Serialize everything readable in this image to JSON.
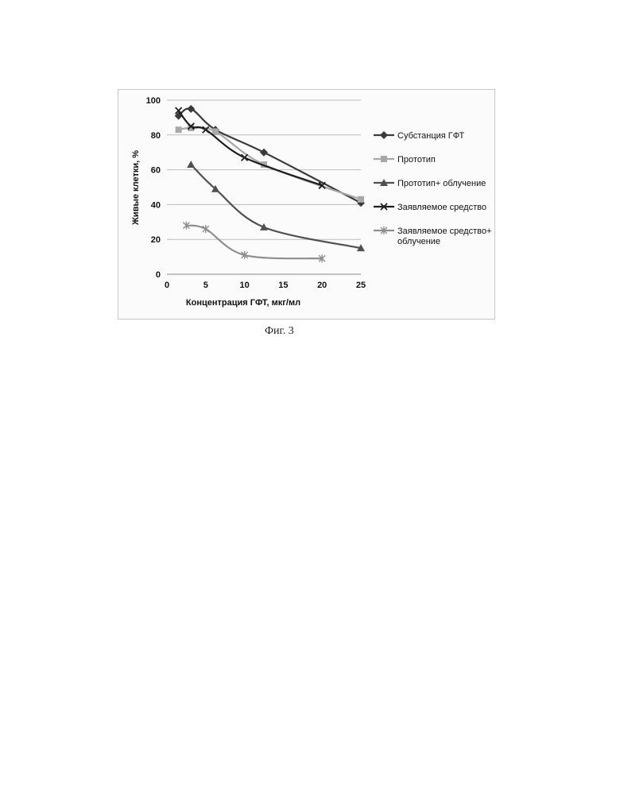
{
  "figure": {
    "caption": "Фиг. 3"
  },
  "chart_data": {
    "type": "line",
    "title": "",
    "xlabel": "Концентрация ГФТ, мкг/мл",
    "ylabel": "Живые клетки, %",
    "xlim": [
      0,
      25
    ],
    "ylim": [
      0,
      100
    ],
    "xticks": [
      0,
      5,
      10,
      15,
      20,
      25
    ],
    "yticks": [
      0,
      20,
      40,
      60,
      80,
      100
    ],
    "grid": "horizontal",
    "legend": "right",
    "series": [
      {
        "name": "Субстанция ГФТ",
        "marker": "diamond",
        "color": "#3a3a3a",
        "x": [
          1.5,
          3.1,
          6.25,
          12.5,
          25
        ],
        "y": [
          91,
          95,
          83,
          70,
          41
        ]
      },
      {
        "name": "Прототип",
        "marker": "square",
        "color": "#a8a8a8",
        "x": [
          1.5,
          3.1,
          6.25,
          12.5,
          25
        ],
        "y": [
          83,
          84,
          82,
          63,
          43
        ]
      },
      {
        "name": "Прототип+ облучение",
        "marker": "triangle",
        "color": "#505050",
        "x": [
          3.1,
          6.25,
          12.5,
          25
        ],
        "y": [
          63,
          49,
          27,
          15
        ]
      },
      {
        "name": "Заявляемое средство",
        "marker": "x",
        "color": "#1e1e1e",
        "x": [
          1.5,
          3.1,
          5,
          10,
          20
        ],
        "y": [
          94,
          85,
          83,
          67,
          51
        ]
      },
      {
        "name": "Заявляемое средство+ облучение",
        "marker": "asterisk",
        "color": "#8e8e8e",
        "x": [
          2.5,
          5,
          10,
          20
        ],
        "y": [
          28,
          26,
          11,
          9
        ]
      }
    ]
  }
}
